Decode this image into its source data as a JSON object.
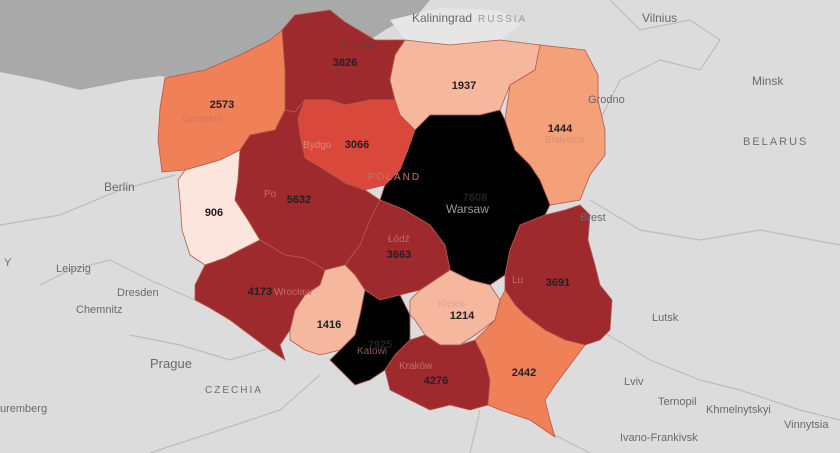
{
  "colors": {
    "land": "#dcdcdc",
    "sea": "#a9a9a9",
    "scale": [
      "#fce5dc",
      "#f6b79f",
      "#f4a078",
      "#f08058",
      "#d9483b",
      "#9e2a2e"
    ]
  },
  "cities": [
    {
      "id": "kaliningrad",
      "label": "Kaliningrad"
    },
    {
      "id": "vilnius",
      "label": "Vilnius"
    },
    {
      "id": "minsk",
      "label": "Minsk"
    },
    {
      "id": "grodno",
      "label": "Grodno"
    },
    {
      "id": "berlin",
      "label": "Berlin"
    },
    {
      "id": "leipzig",
      "label": "Leipzig"
    },
    {
      "id": "dresden",
      "label": "Dresden"
    },
    {
      "id": "chemnitz",
      "label": "Chemnitz"
    },
    {
      "id": "prague",
      "label": "Prague"
    },
    {
      "id": "lutsk",
      "label": "Lutsk"
    },
    {
      "id": "lviv",
      "label": "Lviv"
    },
    {
      "id": "ternopil",
      "label": "Ternopil"
    },
    {
      "id": "khmelnytskyi",
      "label": "Khmelnytskyi"
    },
    {
      "id": "vinnytsia",
      "label": "Vinnytsia"
    },
    {
      "id": "ivano",
      "label": "Ivano-Frankivsk"
    },
    {
      "id": "nuremberg",
      "label": "uremberg"
    },
    {
      "id": "warsaw",
      "label": "Warsaw"
    },
    {
      "id": "szczecin",
      "label": "Szczecin"
    },
    {
      "id": "bydgoszcz",
      "label": "Bydgo"
    },
    {
      "id": "bialystok",
      "label": "Białystok"
    },
    {
      "id": "brest",
      "label": "Brest"
    },
    {
      "id": "gdansk",
      "label": "Gdańsk"
    },
    {
      "id": "poznan",
      "label": "Po"
    },
    {
      "id": "lodz",
      "label": "Łódź"
    },
    {
      "id": "wroclaw",
      "label": "Wrocław"
    },
    {
      "id": "katowice",
      "label": "Katowi"
    },
    {
      "id": "kielce",
      "label": "Kielce"
    },
    {
      "id": "krakow",
      "label": "Kraków"
    },
    {
      "id": "lublin",
      "label": "Lu"
    },
    {
      "id": "y",
      "label": "Y"
    }
  ],
  "countries": [
    {
      "id": "belarus",
      "label": "BELARUS"
    },
    {
      "id": "czechia",
      "label": "CZECHIA"
    },
    {
      "id": "poland",
      "label": "POLAND"
    },
    {
      "id": "russia",
      "label": "RUSSIA"
    }
  ],
  "regions": [
    {
      "id": "pomorskie",
      "value": 3826,
      "level": 5
    },
    {
      "id": "zachodniopomorskie",
      "value": 2573,
      "level": 3
    },
    {
      "id": "warminsko-mazurskie",
      "value": 1937,
      "level": 1
    },
    {
      "id": "podlaskie",
      "value": 1444,
      "level": 2
    },
    {
      "id": "kujawsko-pomorskie",
      "value": 3066,
      "level": 4
    },
    {
      "id": "lubuskie",
      "value": 906,
      "level": 0
    },
    {
      "id": "wielkopolskie",
      "value": 5632,
      "level": 5
    },
    {
      "id": "mazowieckie",
      "value": 7608,
      "level": 6
    },
    {
      "id": "lodzkie",
      "value": 3663,
      "level": 5
    },
    {
      "id": "lubelskie",
      "value": 3691,
      "level": 5
    },
    {
      "id": "dolnoslaskie",
      "value": 4173,
      "level": 5
    },
    {
      "id": "opolskie",
      "value": 1416,
      "level": 1
    },
    {
      "id": "slaskie",
      "value": 7925,
      "level": 6
    },
    {
      "id": "swietokrzyskie",
      "value": 1214,
      "level": 1
    },
    {
      "id": "malopolskie",
      "value": 4276,
      "level": 5
    },
    {
      "id": "podkarpackie",
      "value": 2442,
      "level": 3
    }
  ]
}
